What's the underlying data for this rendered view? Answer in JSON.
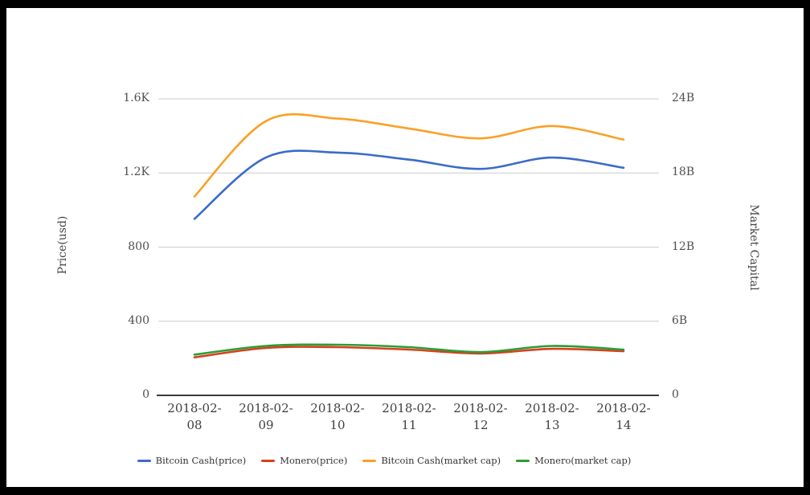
{
  "chart_data": {
    "type": "line",
    "x": [
      "2018-02-08",
      "2018-02-09",
      "2018-02-10",
      "2018-02-11",
      "2018-02-12",
      "2018-02-13",
      "2018-02-14"
    ],
    "series": [
      {
        "name": "Bitcoin Cash(price)",
        "axis": "left",
        "color": "#3A6BC9",
        "values": [
          952,
          1284,
          1310,
          1272,
          1222,
          1283,
          1228
        ]
      },
      {
        "name": "Monero(price)",
        "axis": "left",
        "color": "#D8401C",
        "values": [
          205,
          256,
          260,
          247,
          226,
          251,
          238
        ]
      },
      {
        "name": "Bitcoin Cash(market cap)",
        "axis": "right",
        "color": "#FBA026",
        "values": [
          16.1,
          22.2,
          22.4,
          21.6,
          20.8,
          21.8,
          20.7
        ]
      },
      {
        "name": "Monero(market cap)",
        "axis": "right",
        "color": "#2C9C38",
        "values": [
          3.3,
          4.0,
          4.1,
          3.9,
          3.5,
          4.0,
          3.7
        ]
      }
    ],
    "left_axis": {
      "title": "Price(usd)",
      "ticks": [
        "0",
        "400",
        "800",
        "1.2K",
        "1.6K"
      ],
      "min": 0,
      "max": 1600
    },
    "right_axis": {
      "title": "Market Capital",
      "ticks": [
        "0",
        "6B",
        "12B",
        "18B",
        "24B"
      ],
      "min": 0,
      "max": 24,
      "unit": "B"
    },
    "legend_position": "bottom",
    "grid": true,
    "grid_color": "#cccccc",
    "axis_line_color": "#3b3b3b"
  }
}
